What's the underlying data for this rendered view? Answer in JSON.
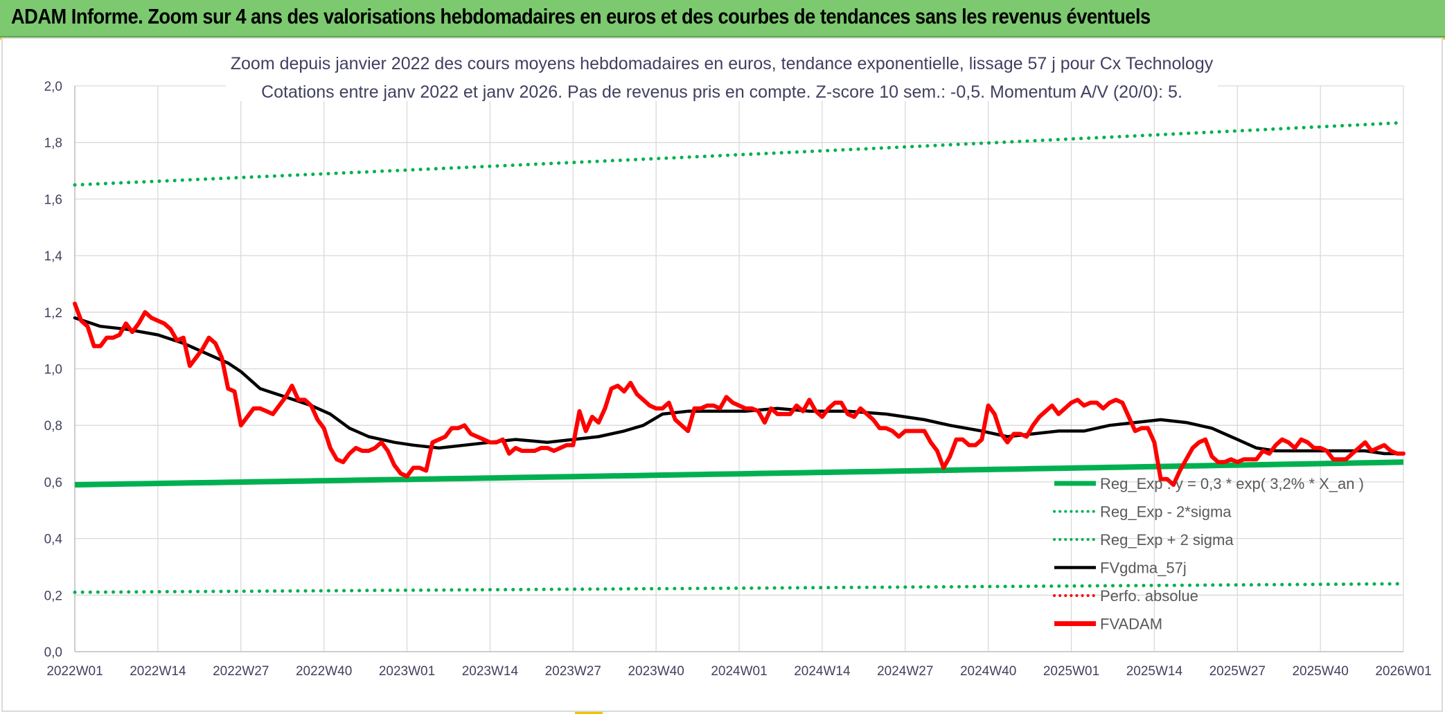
{
  "banner": {
    "title": "ADAM Informe. Zoom sur 4 ans des valorisations hebdomadaires en euros et des courbes de tendances sans les revenus éventuels"
  },
  "colors": {
    "banner_bg": "#7cc96f",
    "regression": "#00b050",
    "fvgdma": "#000000",
    "fvadam": "#ff0000",
    "grid": "#d9d9d9",
    "text": "#404060"
  },
  "chart_data": {
    "type": "line",
    "title_line1": "Zoom depuis janvier 2022 des cours moyens hebdomadaires en euros, tendance exponentielle, lissage 57 j pour Cx Technology",
    "title_line2": "Cotations entre janv 2022 et janv 2026. Pas de revenus pris en compte. Z-score 10 sem.: -0,5. Momentum A/V (20/0): 5.",
    "ylim": [
      0,
      2
    ],
    "y_ticks": [
      "0,0",
      "0,2",
      "0,4",
      "0,6",
      "0,8",
      "1,0",
      "1,2",
      "1,4",
      "1,6",
      "1,8",
      "2,0"
    ],
    "x_ticks": [
      "2022W01",
      "2022W14",
      "2022W27",
      "2022W40",
      "2023W01",
      "2023W14",
      "2023W27",
      "2023W40",
      "2024W01",
      "2024W14",
      "2024W27",
      "2024W40",
      "2025W01",
      "2025W14",
      "2025W27",
      "2025W40",
      "2026W01"
    ],
    "week_count": 209,
    "legend": [
      {
        "label": "Reg_Exp : y = 0,3 * exp( 3,2% *  X_an )",
        "style": "solid-thick",
        "color": "#00b050"
      },
      {
        "label": "Reg_Exp - 2*sigma",
        "style": "dotted",
        "color": "#00b050"
      },
      {
        "label": "Reg_Exp + 2 sigma",
        "style": "dotted",
        "color": "#00b050"
      },
      {
        "label": "FVgdma_57j",
        "style": "solid",
        "color": "#000000"
      },
      {
        "label": "Perfo. absolue",
        "style": "dotted",
        "color": "#ff0000"
      },
      {
        "label": "FVADAM",
        "style": "solid-thick",
        "color": "#ff0000"
      }
    ],
    "series": {
      "reg_exp": {
        "name": "Reg_Exp",
        "start": 0.59,
        "end": 0.67
      },
      "reg_minus": {
        "name": "Reg_Exp - 2*sigma",
        "start": 0.21,
        "end": 0.24
      },
      "reg_plus": {
        "name": "Reg_Exp + 2 sigma",
        "start": 1.65,
        "end": 1.87
      },
      "fvgdma": {
        "name": "FVgdma_57j",
        "points": [
          [
            0,
            1.18
          ],
          [
            4,
            1.15
          ],
          [
            8,
            1.14
          ],
          [
            13,
            1.12
          ],
          [
            17,
            1.09
          ],
          [
            21,
            1.05
          ],
          [
            24,
            1.02
          ],
          [
            26,
            0.99
          ],
          [
            29,
            0.93
          ],
          [
            33,
            0.9
          ],
          [
            37,
            0.87
          ],
          [
            40,
            0.84
          ],
          [
            43,
            0.79
          ],
          [
            46,
            0.76
          ],
          [
            50,
            0.74
          ],
          [
            53,
            0.73
          ],
          [
            57,
            0.72
          ],
          [
            61,
            0.73
          ],
          [
            65,
            0.74
          ],
          [
            69,
            0.75
          ],
          [
            74,
            0.74
          ],
          [
            78,
            0.75
          ],
          [
            82,
            0.76
          ],
          [
            86,
            0.78
          ],
          [
            89,
            0.8
          ],
          [
            92,
            0.84
          ],
          [
            96,
            0.85
          ],
          [
            101,
            0.85
          ],
          [
            105,
            0.85
          ],
          [
            110,
            0.86
          ],
          [
            115,
            0.85
          ],
          [
            121,
            0.85
          ],
          [
            127,
            0.84
          ],
          [
            133,
            0.82
          ],
          [
            137,
            0.8
          ],
          [
            142,
            0.78
          ],
          [
            146,
            0.76
          ],
          [
            150,
            0.77
          ],
          [
            154,
            0.78
          ],
          [
            158,
            0.78
          ],
          [
            162,
            0.8
          ],
          [
            166,
            0.81
          ],
          [
            170,
            0.82
          ],
          [
            174,
            0.81
          ],
          [
            178,
            0.79
          ],
          [
            182,
            0.75
          ],
          [
            185,
            0.72
          ],
          [
            188,
            0.71
          ],
          [
            192,
            0.71
          ],
          [
            197,
            0.71
          ],
          [
            202,
            0.71
          ],
          [
            205,
            0.7
          ],
          [
            208,
            0.7
          ]
        ]
      },
      "fvadam": {
        "name": "FVADAM",
        "points": [
          [
            0,
            1.23
          ],
          [
            1,
            1.17
          ],
          [
            2,
            1.15
          ],
          [
            3,
            1.08
          ],
          [
            4,
            1.08
          ],
          [
            5,
            1.11
          ],
          [
            6,
            1.11
          ],
          [
            7,
            1.12
          ],
          [
            8,
            1.16
          ],
          [
            9,
            1.13
          ],
          [
            10,
            1.16
          ],
          [
            11,
            1.2
          ],
          [
            12,
            1.18
          ],
          [
            13,
            1.17
          ],
          [
            14,
            1.16
          ],
          [
            15,
            1.14
          ],
          [
            16,
            1.1
          ],
          [
            17,
            1.11
          ],
          [
            18,
            1.01
          ],
          [
            19,
            1.04
          ],
          [
            20,
            1.07
          ],
          [
            21,
            1.11
          ],
          [
            22,
            1.09
          ],
          [
            23,
            1.04
          ],
          [
            24,
            0.93
          ],
          [
            25,
            0.92
          ],
          [
            26,
            0.8
          ],
          [
            27,
            0.83
          ],
          [
            28,
            0.86
          ],
          [
            29,
            0.86
          ],
          [
            30,
            0.85
          ],
          [
            31,
            0.84
          ],
          [
            32,
            0.87
          ],
          [
            33,
            0.9
          ],
          [
            34,
            0.94
          ],
          [
            35,
            0.89
          ],
          [
            36,
            0.89
          ],
          [
            37,
            0.87
          ],
          [
            38,
            0.82
          ],
          [
            39,
            0.79
          ],
          [
            40,
            0.72
          ],
          [
            41,
            0.68
          ],
          [
            42,
            0.67
          ],
          [
            43,
            0.7
          ],
          [
            44,
            0.72
          ],
          [
            45,
            0.71
          ],
          [
            46,
            0.71
          ],
          [
            47,
            0.72
          ],
          [
            48,
            0.74
          ],
          [
            49,
            0.71
          ],
          [
            50,
            0.66
          ],
          [
            51,
            0.63
          ],
          [
            52,
            0.62
          ],
          [
            53,
            0.65
          ],
          [
            54,
            0.65
          ],
          [
            55,
            0.64
          ],
          [
            56,
            0.74
          ],
          [
            57,
            0.75
          ],
          [
            58,
            0.76
          ],
          [
            59,
            0.79
          ],
          [
            60,
            0.79
          ],
          [
            61,
            0.8
          ],
          [
            62,
            0.77
          ],
          [
            63,
            0.76
          ],
          [
            64,
            0.75
          ],
          [
            65,
            0.74
          ],
          [
            66,
            0.74
          ],
          [
            67,
            0.75
          ],
          [
            68,
            0.7
          ],
          [
            69,
            0.72
          ],
          [
            70,
            0.71
          ],
          [
            71,
            0.71
          ],
          [
            72,
            0.71
          ],
          [
            73,
            0.72
          ],
          [
            74,
            0.72
          ],
          [
            75,
            0.71
          ],
          [
            76,
            0.72
          ],
          [
            77,
            0.73
          ],
          [
            78,
            0.73
          ],
          [
            79,
            0.85
          ],
          [
            80,
            0.78
          ],
          [
            81,
            0.83
          ],
          [
            82,
            0.81
          ],
          [
            83,
            0.86
          ],
          [
            84,
            0.93
          ],
          [
            85,
            0.94
          ],
          [
            86,
            0.92
          ],
          [
            87,
            0.95
          ],
          [
            88,
            0.91
          ],
          [
            89,
            0.89
          ],
          [
            90,
            0.87
          ],
          [
            91,
            0.86
          ],
          [
            92,
            0.86
          ],
          [
            93,
            0.88
          ],
          [
            94,
            0.82
          ],
          [
            95,
            0.8
          ],
          [
            96,
            0.78
          ],
          [
            97,
            0.86
          ],
          [
            98,
            0.86
          ],
          [
            99,
            0.87
          ],
          [
            100,
            0.87
          ],
          [
            101,
            0.86
          ],
          [
            102,
            0.9
          ],
          [
            103,
            0.88
          ],
          [
            104,
            0.87
          ],
          [
            105,
            0.86
          ],
          [
            106,
            0.86
          ],
          [
            107,
            0.85
          ],
          [
            108,
            0.81
          ],
          [
            109,
            0.86
          ],
          [
            110,
            0.84
          ],
          [
            111,
            0.84
          ],
          [
            112,
            0.84
          ],
          [
            113,
            0.87
          ],
          [
            114,
            0.85
          ],
          [
            115,
            0.89
          ],
          [
            116,
            0.85
          ],
          [
            117,
            0.83
          ],
          [
            118,
            0.86
          ],
          [
            119,
            0.88
          ],
          [
            120,
            0.88
          ],
          [
            121,
            0.84
          ],
          [
            122,
            0.83
          ],
          [
            123,
            0.86
          ],
          [
            124,
            0.84
          ],
          [
            125,
            0.82
          ],
          [
            126,
            0.79
          ],
          [
            127,
            0.79
          ],
          [
            128,
            0.78
          ],
          [
            129,
            0.76
          ],
          [
            130,
            0.78
          ],
          [
            131,
            0.78
          ],
          [
            132,
            0.78
          ],
          [
            133,
            0.78
          ],
          [
            134,
            0.74
          ],
          [
            135,
            0.71
          ],
          [
            136,
            0.65
          ],
          [
            137,
            0.69
          ],
          [
            138,
            0.75
          ],
          [
            139,
            0.75
          ],
          [
            140,
            0.73
          ],
          [
            141,
            0.73
          ],
          [
            142,
            0.75
          ],
          [
            143,
            0.87
          ],
          [
            144,
            0.84
          ],
          [
            145,
            0.77
          ],
          [
            146,
            0.74
          ],
          [
            147,
            0.77
          ],
          [
            148,
            0.77
          ],
          [
            149,
            0.76
          ],
          [
            150,
            0.8
          ],
          [
            151,
            0.83
          ],
          [
            152,
            0.85
          ],
          [
            153,
            0.87
          ],
          [
            154,
            0.84
          ],
          [
            155,
            0.86
          ],
          [
            156,
            0.88
          ],
          [
            157,
            0.89
          ],
          [
            158,
            0.87
          ],
          [
            159,
            0.88
          ],
          [
            160,
            0.88
          ],
          [
            161,
            0.86
          ],
          [
            162,
            0.88
          ],
          [
            163,
            0.89
          ],
          [
            164,
            0.88
          ],
          [
            165,
            0.83
          ],
          [
            166,
            0.78
          ],
          [
            167,
            0.79
          ],
          [
            168,
            0.79
          ],
          [
            169,
            0.74
          ],
          [
            170,
            0.61
          ],
          [
            171,
            0.61
          ],
          [
            172,
            0.59
          ],
          [
            173,
            0.64
          ],
          [
            174,
            0.68
          ],
          [
            175,
            0.72
          ],
          [
            176,
            0.74
          ],
          [
            177,
            0.75
          ],
          [
            178,
            0.69
          ],
          [
            179,
            0.67
          ],
          [
            180,
            0.67
          ],
          [
            181,
            0.68
          ],
          [
            182,
            0.67
          ],
          [
            183,
            0.68
          ],
          [
            184,
            0.68
          ],
          [
            185,
            0.68
          ],
          [
            186,
            0.71
          ],
          [
            187,
            0.7
          ],
          [
            188,
            0.73
          ],
          [
            189,
            0.75
          ],
          [
            190,
            0.74
          ],
          [
            191,
            0.72
          ],
          [
            192,
            0.75
          ],
          [
            193,
            0.74
          ],
          [
            194,
            0.72
          ],
          [
            195,
            0.72
          ],
          [
            196,
            0.71
          ],
          [
            197,
            0.68
          ],
          [
            198,
            0.68
          ],
          [
            199,
            0.68
          ],
          [
            200,
            0.7
          ],
          [
            201,
            0.72
          ],
          [
            202,
            0.74
          ],
          [
            203,
            0.71
          ],
          [
            204,
            0.72
          ],
          [
            205,
            0.73
          ],
          [
            206,
            0.71
          ],
          [
            207,
            0.7
          ],
          [
            208,
            0.7
          ]
        ]
      }
    }
  }
}
